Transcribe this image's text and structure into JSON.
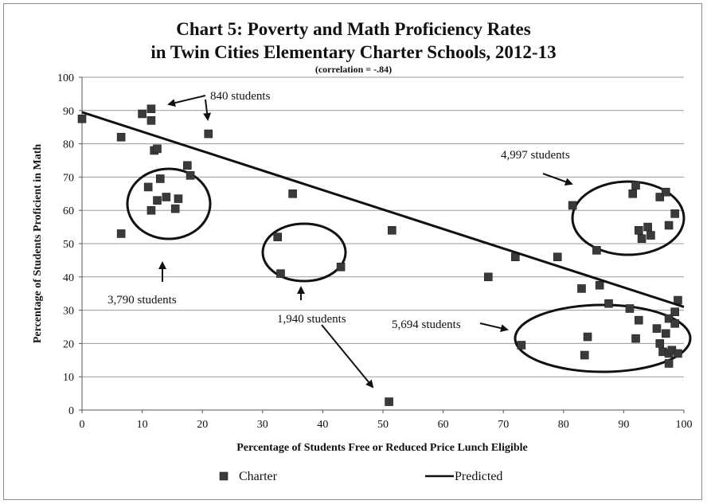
{
  "chart_data": {
    "type": "scatter",
    "title": "Chart 5: Poverty and Math Proficiency Rates",
    "title_line2": "in Twin Cities Elementary Charter Schools, 2012-13",
    "subtitle": "(correlation = -.84)",
    "xlabel": "Percentage of Students Free or Reduced Price Lunch Eligible",
    "ylabel": "Percentage of Students Proficient in Math",
    "xlim": [
      0,
      100
    ],
    "ylim": [
      0,
      100
    ],
    "x_ticks": [
      "0",
      "10",
      "20",
      "30",
      "40",
      "50",
      "60",
      "70",
      "80",
      "90",
      "100"
    ],
    "y_ticks": [
      "0",
      "10",
      "20",
      "30",
      "40",
      "50",
      "60",
      "70",
      "80",
      "90",
      "100"
    ],
    "grid": "horizontal",
    "legend_placement": "bottom",
    "series": [
      {
        "name": "Charter",
        "marker": "square",
        "color": "#3a3a3a",
        "points": [
          [
            0,
            87.5
          ],
          [
            6.5,
            82
          ],
          [
            6.5,
            53
          ],
          [
            10,
            89
          ],
          [
            11.5,
            90.5
          ],
          [
            11.5,
            87
          ],
          [
            12,
            78
          ],
          [
            12.5,
            78.5
          ],
          [
            11,
            67
          ],
          [
            11.5,
            60
          ],
          [
            12.5,
            63
          ],
          [
            13,
            69.5
          ],
          [
            14,
            64
          ],
          [
            15.5,
            60.5
          ],
          [
            16,
            63.5
          ],
          [
            17.5,
            73.5
          ],
          [
            18,
            70.5
          ],
          [
            21,
            83
          ],
          [
            32.5,
            52
          ],
          [
            33,
            41
          ],
          [
            35,
            65
          ],
          [
            43,
            43
          ],
          [
            51,
            2.5
          ],
          [
            51.5,
            54
          ],
          [
            67.5,
            40
          ],
          [
            72,
            46
          ],
          [
            73,
            19.5
          ],
          [
            79,
            46
          ],
          [
            81.5,
            61.5
          ],
          [
            83,
            36.5
          ],
          [
            83.5,
            16.5
          ],
          [
            84,
            22
          ],
          [
            85.5,
            48
          ],
          [
            86,
            37.5
          ],
          [
            87.5,
            32
          ],
          [
            91.5,
            65
          ],
          [
            92,
            67.5
          ],
          [
            92.5,
            54
          ],
          [
            93,
            51.5
          ],
          [
            94,
            55
          ],
          [
            94.5,
            52.5
          ],
          [
            96,
            64
          ],
          [
            97,
            65.5
          ],
          [
            97.5,
            55.5
          ],
          [
            98.5,
            59
          ],
          [
            91,
            30.5
          ],
          [
            92,
            21.5
          ],
          [
            92.5,
            27
          ],
          [
            95.5,
            24.5
          ],
          [
            96,
            20
          ],
          [
            96.5,
            17.5
          ],
          [
            97,
            23
          ],
          [
            97.5,
            27.5
          ],
          [
            97.5,
            17
          ],
          [
            97.5,
            14
          ],
          [
            98,
            18
          ],
          [
            98.5,
            29.5
          ],
          [
            98.5,
            26
          ],
          [
            99,
            33
          ],
          [
            99,
            17
          ]
        ]
      },
      {
        "name": "Predicted",
        "type": "line",
        "color": "#111111",
        "points": [
          [
            0,
            89.5
          ],
          [
            100,
            31
          ]
        ]
      }
    ],
    "annotations": [
      {
        "text": "840 students"
      },
      {
        "text": "4,997 students"
      },
      {
        "text": "3,790 students"
      },
      {
        "text": "1,940 students"
      },
      {
        "text": "5,694 students"
      }
    ]
  }
}
